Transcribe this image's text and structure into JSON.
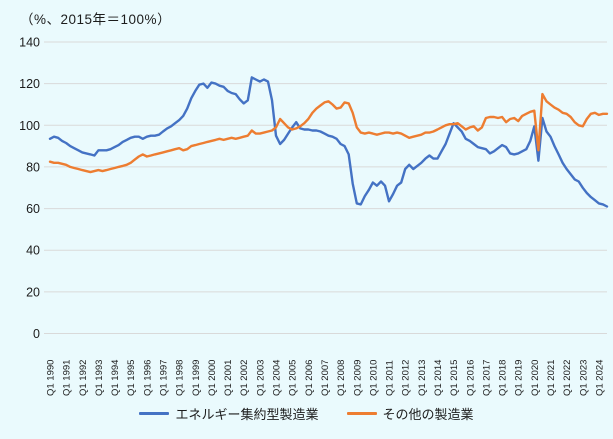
{
  "chart_data": {
    "type": "line",
    "title": "（%、2015年＝100%）",
    "xlabel": "",
    "ylabel": "",
    "ylim": [
      0,
      140
    ],
    "grid": "horizontal",
    "legend_position": "bottom",
    "frequency": "quarterly",
    "x_start": "1990Q1",
    "x_end": "2024Q3",
    "y_ticks": [
      0,
      20,
      40,
      60,
      80,
      100,
      120,
      140
    ],
    "x_tick_labels": [
      "Q1 1990",
      "Q1 1991",
      "Q1 1992",
      "Q1 1993",
      "Q1 1994",
      "Q1 1995",
      "Q1 1996",
      "Q1 1997",
      "Q1 1998",
      "Q1 1999",
      "Q1 2000",
      "Q1 2001",
      "Q1 2002",
      "Q1 2003",
      "Q1 2004",
      "Q1 2005",
      "Q1 2006",
      "Q1 2007",
      "Q1 2008",
      "Q1 2009",
      "Q1 2010",
      "Q1 2011",
      "Q1 2012",
      "Q1 2013",
      "Q1 2014",
      "Q1 2015",
      "Q1 2016",
      "Q1 2017",
      "Q1 2018",
      "Q1 2019",
      "Q1 2020",
      "Q1 2021",
      "Q1 2022",
      "Q1 2023",
      "Q1 2024"
    ],
    "series": [
      {
        "name": "エネルギー集約型製造業",
        "color": "#4472c4",
        "values": [
          93.5,
          94.5,
          94.0,
          92.5,
          91.5,
          90.0,
          89.0,
          88.0,
          87.0,
          86.5,
          86.0,
          85.5,
          88.0,
          88.0,
          88.0,
          88.5,
          89.5,
          90.5,
          92.0,
          93.0,
          94.0,
          94.5,
          94.5,
          93.5,
          94.5,
          95.0,
          95.0,
          95.5,
          97.0,
          98.5,
          99.5,
          101.0,
          102.5,
          104.5,
          108.0,
          113.0,
          116.5,
          119.5,
          120.0,
          118.0,
          120.5,
          120.0,
          119.0,
          118.5,
          116.5,
          115.5,
          115.0,
          112.5,
          110.5,
          112.0,
          123.0,
          122.0,
          121.0,
          122.0,
          121.0,
          112.0,
          95.0,
          91.0,
          93.0,
          96.0,
          99.0,
          101.5,
          98.5,
          98.0,
          98.0,
          97.5,
          97.5,
          97.0,
          96.0,
          95.0,
          94.5,
          93.5,
          91.0,
          90.0,
          86.0,
          72.0,
          62.5,
          62.0,
          66.0,
          69.0,
          72.5,
          71.0,
          73.0,
          71.0,
          63.5,
          67.0,
          71.0,
          72.5,
          79.0,
          81.0,
          79.0,
          80.5,
          82.0,
          84.0,
          85.5,
          84.0,
          84.0,
          87.5,
          91.0,
          96.0,
          101.0,
          99.0,
          97.0,
          93.5,
          92.5,
          91.0,
          89.5,
          89.0,
          88.5,
          86.5,
          87.5,
          89.0,
          90.5,
          89.5,
          86.5,
          86.0,
          86.5,
          87.5,
          88.5,
          92.5,
          99.5,
          83.0,
          103.5,
          97.0,
          94.5,
          90.0,
          86.0,
          82.0,
          79.0,
          76.5,
          74.0,
          73.0,
          70.0,
          67.5,
          65.5,
          64.0,
          62.5,
          62.0,
          61.0
        ]
      },
      {
        "name": "その他の製造業",
        "color": "#ed7d31",
        "values": [
          82.5,
          82.0,
          82.0,
          81.5,
          81.0,
          80.0,
          79.5,
          79.0,
          78.5,
          78.0,
          77.5,
          78.0,
          78.5,
          78.0,
          78.5,
          79.0,
          79.5,
          80.0,
          80.5,
          81.0,
          82.0,
          83.5,
          85.0,
          86.0,
          85.0,
          85.5,
          86.0,
          86.5,
          87.0,
          87.5,
          88.0,
          88.5,
          89.0,
          88.0,
          88.5,
          90.0,
          90.5,
          91.0,
          91.5,
          92.0,
          92.5,
          93.0,
          93.5,
          93.0,
          93.5,
          94.0,
          93.5,
          94.0,
          94.5,
          95.0,
          97.5,
          96.0,
          96.0,
          96.5,
          97.0,
          97.5,
          99.0,
          103.0,
          101.0,
          99.0,
          98.0,
          98.5,
          99.5,
          101.0,
          103.0,
          106.0,
          108.0,
          109.5,
          111.0,
          111.5,
          110.0,
          108.0,
          108.5,
          111.0,
          110.5,
          106.0,
          99.0,
          96.5,
          96.0,
          96.5,
          96.0,
          95.5,
          96.0,
          96.5,
          96.5,
          96.0,
          96.5,
          96.0,
          95.0,
          94.0,
          94.5,
          95.0,
          95.5,
          96.5,
          96.5,
          97.0,
          98.0,
          99.0,
          100.0,
          100.5,
          100.5,
          101.0,
          99.5,
          98.0,
          99.0,
          99.5,
          97.5,
          99.0,
          103.5,
          104.0,
          104.0,
          103.5,
          104.0,
          101.5,
          103.0,
          103.5,
          102.0,
          104.5,
          105.5,
          106.5,
          107.0,
          88.0,
          115.0,
          111.5,
          110.0,
          108.5,
          107.5,
          106.0,
          105.5,
          104.0,
          101.5,
          100.0,
          99.5,
          103.0,
          105.5,
          106.0,
          105.0,
          105.5,
          105.5
        ]
      }
    ],
    "style": {
      "background": "#eafafd",
      "gridline_color": "#d9d9d9",
      "text_color": "#1c1c1c"
    }
  }
}
